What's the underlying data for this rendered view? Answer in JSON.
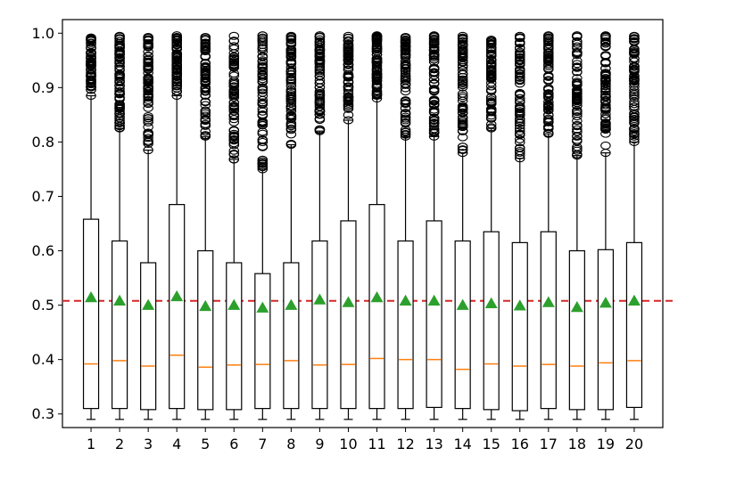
{
  "chart_data": {
    "type": "box",
    "categories": [
      "1",
      "2",
      "3",
      "4",
      "5",
      "6",
      "7",
      "8",
      "9",
      "10",
      "11",
      "12",
      "13",
      "14",
      "15",
      "16",
      "17",
      "18",
      "19",
      "20"
    ],
    "title": "",
    "xlabel": "",
    "ylabel": "",
    "ylim": [
      0.275,
      1.025
    ],
    "yticks": [
      0.3,
      0.4,
      0.5,
      0.6,
      0.7,
      0.8,
      0.9,
      1.0
    ],
    "ytick_labels": [
      "0.3",
      "0.4",
      "0.5",
      "0.6",
      "0.7",
      "0.8",
      "0.9",
      "1.0"
    ],
    "grid": false,
    "reference_line": {
      "value": 0.508,
      "style": "dashed",
      "color": "#d62728"
    },
    "colors": {
      "box": "#000000",
      "median": "#ff7f0e",
      "mean_marker": "#2ca02c",
      "outlier": "#000000"
    },
    "boxes": [
      {
        "label": "1",
        "whisker_low": 0.29,
        "q1": 0.31,
        "median": 0.392,
        "q3": 0.658,
        "whisker_high": 0.885,
        "mean": 0.514,
        "outliers_low": 0.885,
        "outliers_high": 0.992
      },
      {
        "label": "2",
        "whisker_low": 0.29,
        "q1": 0.31,
        "median": 0.398,
        "q3": 0.618,
        "whisker_high": 0.825,
        "mean": 0.508,
        "outliers_low": 0.825,
        "outliers_high": 0.995
      },
      {
        "label": "3",
        "whisker_low": 0.29,
        "q1": 0.308,
        "median": 0.388,
        "q3": 0.578,
        "whisker_high": 0.785,
        "mean": 0.5,
        "outliers_low": 0.785,
        "outliers_high": 0.993
      },
      {
        "label": "4",
        "whisker_low": 0.29,
        "q1": 0.31,
        "median": 0.408,
        "q3": 0.685,
        "whisker_high": 0.885,
        "mean": 0.516,
        "outliers_low": 0.885,
        "outliers_high": 0.996
      },
      {
        "label": "5",
        "whisker_low": 0.29,
        "q1": 0.308,
        "median": 0.386,
        "q3": 0.6,
        "whisker_high": 0.81,
        "mean": 0.498,
        "outliers_low": 0.81,
        "outliers_high": 0.993
      },
      {
        "label": "6",
        "whisker_low": 0.29,
        "q1": 0.308,
        "median": 0.39,
        "q3": 0.578,
        "whisker_high": 0.768,
        "mean": 0.5,
        "outliers_low": 0.768,
        "outliers_high": 0.995
      },
      {
        "label": "7",
        "whisker_low": 0.29,
        "q1": 0.31,
        "median": 0.391,
        "q3": 0.558,
        "whisker_high": 0.75,
        "mean": 0.495,
        "outliers_low": 0.75,
        "outliers_high": 0.996
      },
      {
        "label": "8",
        "whisker_low": 0.29,
        "q1": 0.31,
        "median": 0.398,
        "q3": 0.578,
        "whisker_high": 0.795,
        "mean": 0.5,
        "outliers_low": 0.795,
        "outliers_high": 0.995
      },
      {
        "label": "9",
        "whisker_low": 0.29,
        "q1": 0.31,
        "median": 0.39,
        "q3": 0.618,
        "whisker_high": 0.82,
        "mean": 0.51,
        "outliers_low": 0.82,
        "outliers_high": 0.996
      },
      {
        "label": "10",
        "whisker_low": 0.29,
        "q1": 0.31,
        "median": 0.391,
        "q3": 0.655,
        "whisker_high": 0.84,
        "mean": 0.505,
        "outliers_low": 0.84,
        "outliers_high": 0.995
      },
      {
        "label": "11",
        "whisker_low": 0.29,
        "q1": 0.31,
        "median": 0.402,
        "q3": 0.685,
        "whisker_high": 0.88,
        "mean": 0.514,
        "outliers_low": 0.88,
        "outliers_high": 0.996
      },
      {
        "label": "12",
        "whisker_low": 0.29,
        "q1": 0.31,
        "median": 0.4,
        "q3": 0.618,
        "whisker_high": 0.81,
        "mean": 0.508,
        "outliers_low": 0.81,
        "outliers_high": 0.993
      },
      {
        "label": "13",
        "whisker_low": 0.29,
        "q1": 0.312,
        "median": 0.4,
        "q3": 0.655,
        "whisker_high": 0.81,
        "mean": 0.508,
        "outliers_low": 0.81,
        "outliers_high": 0.996
      },
      {
        "label": "14",
        "whisker_low": 0.29,
        "q1": 0.31,
        "median": 0.382,
        "q3": 0.618,
        "whisker_high": 0.78,
        "mean": 0.5,
        "outliers_low": 0.78,
        "outliers_high": 0.995
      },
      {
        "label": "15",
        "whisker_low": 0.29,
        "q1": 0.308,
        "median": 0.392,
        "q3": 0.635,
        "whisker_high": 0.825,
        "mean": 0.503,
        "outliers_low": 0.825,
        "outliers_high": 0.988
      },
      {
        "label": "16",
        "whisker_low": 0.29,
        "q1": 0.306,
        "median": 0.388,
        "q3": 0.615,
        "whisker_high": 0.77,
        "mean": 0.499,
        "outliers_low": 0.77,
        "outliers_high": 0.995
      },
      {
        "label": "17",
        "whisker_low": 0.29,
        "q1": 0.31,
        "median": 0.391,
        "q3": 0.635,
        "whisker_high": 0.815,
        "mean": 0.505,
        "outliers_low": 0.815,
        "outliers_high": 0.996
      },
      {
        "label": "18",
        "whisker_low": 0.29,
        "q1": 0.308,
        "median": 0.388,
        "q3": 0.6,
        "whisker_high": 0.775,
        "mean": 0.496,
        "outliers_low": 0.775,
        "outliers_high": 0.996
      },
      {
        "label": "19",
        "whisker_low": 0.29,
        "q1": 0.308,
        "median": 0.394,
        "q3": 0.602,
        "whisker_high": 0.78,
        "mean": 0.504,
        "outliers_low": 0.78,
        "outliers_high": 0.996
      },
      {
        "label": "20",
        "whisker_low": 0.29,
        "q1": 0.312,
        "median": 0.398,
        "q3": 0.615,
        "whisker_high": 0.8,
        "mean": 0.508,
        "outliers_low": 0.8,
        "outliers_high": 0.995
      }
    ]
  }
}
